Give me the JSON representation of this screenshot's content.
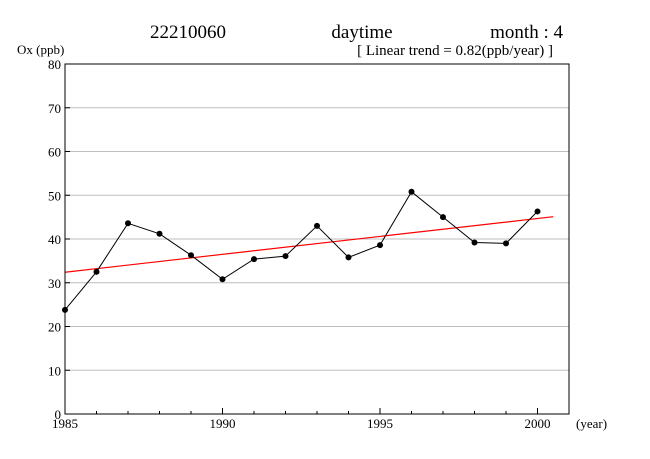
{
  "header": {
    "station_id": "22210060",
    "period": "daytime",
    "month_label": "month : 4",
    "trend_label": "[ Linear trend = 0.82(ppb/year) ]"
  },
  "chart_data": {
    "type": "line",
    "title": "22210060 daytime month : 4",
    "subtitle": "[ Linear trend = 0.82(ppb/year) ]",
    "xlabel": "(year)",
    "ylabel": "Ox (ppb)",
    "xlim": [
      1985,
      2001
    ],
    "ylim": [
      0,
      80
    ],
    "xticks": [
      1985,
      1990,
      1995,
      2000
    ],
    "yticks": [
      0,
      10,
      20,
      30,
      40,
      50,
      60,
      70,
      80
    ],
    "grid": true,
    "series": [
      {
        "x": [
          1985,
          1986,
          1987,
          1988,
          1989,
          1990,
          1991,
          1992,
          1993,
          1994,
          1995,
          1996,
          1997,
          1998,
          1999,
          2000
        ],
        "values": [
          23.8,
          32.5,
          43.6,
          41.2,
          36.3,
          30.8,
          35.4,
          36.1,
          43.0,
          35.8,
          38.6,
          50.8,
          45.0,
          39.2,
          39.0,
          46.3
        ],
        "color": "#000000"
      }
    ],
    "trend": {
      "slope": 0.82,
      "x": [
        1985,
        2000.5
      ],
      "values": [
        32.4,
        45.1
      ],
      "color": "#ff0000"
    }
  }
}
